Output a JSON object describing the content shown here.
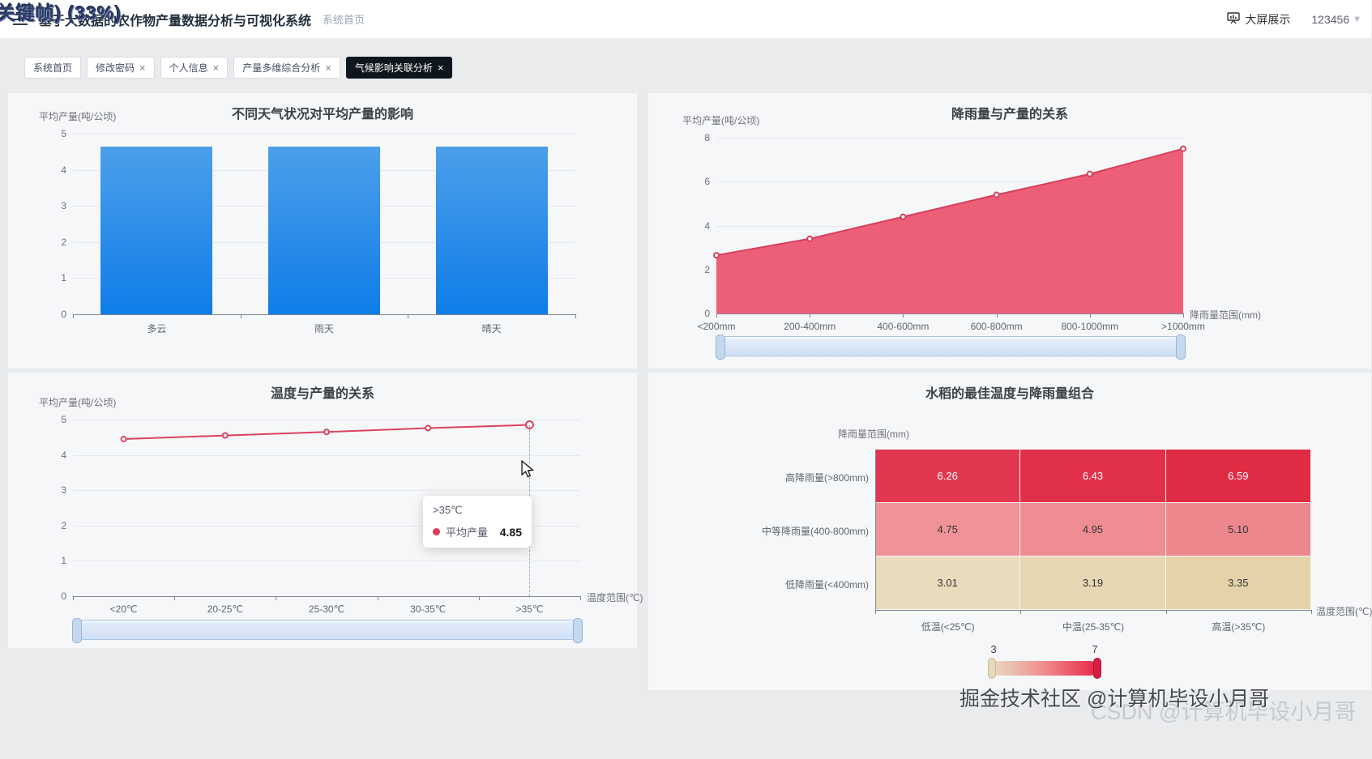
{
  "overlays": {
    "top_left": "关键帧) (33%)",
    "bottom_front": "掘金技术社区 @计算机毕设小月哥",
    "bottom_back": "CSDN @计算机毕设小月哥"
  },
  "header": {
    "title": "基于大数据的农作物产量数据分析与可视化系统",
    "breadcrumb": "系统首页",
    "screen_button": "大屏展示",
    "username": "123456"
  },
  "tabs": [
    {
      "label": "系统首页",
      "closable": false,
      "active": false
    },
    {
      "label": "修改密码",
      "closable": true,
      "active": false
    },
    {
      "label": "个人信息",
      "closable": true,
      "active": false
    },
    {
      "label": "产量多维综合分析",
      "closable": true,
      "active": false
    },
    {
      "label": "气候影响关联分析",
      "closable": true,
      "active": true
    }
  ],
  "chart_data": [
    {
      "type": "bar",
      "title": "不同天气状况对平均产量的影响",
      "ylabel": "平均产量(吨/公顷)",
      "xlabel": "",
      "categories": [
        "多云",
        "雨天",
        "晴天"
      ],
      "values": [
        4.65,
        4.65,
        4.65
      ],
      "ylim": [
        0,
        5
      ],
      "yticks": [
        0,
        1,
        2,
        3,
        4,
        5
      ],
      "grid": true,
      "bar_gradient": [
        "#4c9fea",
        "#0f7de8"
      ]
    },
    {
      "type": "area",
      "title": "降雨量与产量的关系",
      "ylabel": "平均产量(吨/公顷)",
      "xlabel": "降雨量范围(mm)",
      "categories": [
        "<200mm",
        "200-400mm",
        "400-600mm",
        "600-800mm",
        "800-1000mm",
        ">1000mm"
      ],
      "values": [
        2.65,
        3.4,
        4.4,
        5.4,
        6.35,
        7.5
      ],
      "ylim": [
        0,
        8
      ],
      "yticks": [
        0,
        2,
        4,
        6,
        8
      ],
      "grid": true,
      "line_color": "#d6405e",
      "area_color": "#ec5672",
      "has_datazoom": true
    },
    {
      "type": "line",
      "title": "温度与产量的关系",
      "ylabel": "平均产量(吨/公顷)",
      "xlabel": "温度范围(℃)",
      "categories": [
        "<20℃",
        "20-25℃",
        "25-30℃",
        "30-35℃",
        ">35℃"
      ],
      "values": [
        4.45,
        4.55,
        4.65,
        4.76,
        4.85
      ],
      "ylim": [
        0,
        5
      ],
      "yticks": [
        0,
        1,
        2,
        3,
        4,
        5
      ],
      "grid": true,
      "line_color": "#d9435f",
      "has_datazoom": true,
      "tooltip": {
        "category": ">35℃",
        "series": "平均产量",
        "value": "4.85",
        "dot_color": "#e23b57"
      }
    },
    {
      "type": "heatmap",
      "title": "水稻的最佳温度与降雨量组合",
      "ylabel": "降雨量范围(mm)",
      "xlabel": "温度范围(℃)",
      "rows": [
        "高降雨量(>800mm)",
        "中等降雨量(400-800mm)",
        "低降雨量(<400mm)"
      ],
      "columns": [
        "低温(<25℃)",
        "中温(25-35℃)",
        "高温(>35℃)"
      ],
      "values": [
        [
          6.26,
          6.43,
          6.59
        ],
        [
          4.75,
          4.95,
          5.1
        ],
        [
          3.01,
          3.19,
          3.35
        ]
      ],
      "labels": [
        [
          "6.26",
          "6.43",
          "6.59"
        ],
        [
          "4.75",
          "4.95",
          "5.10"
        ],
        [
          "3.01",
          "3.19",
          "3.35"
        ]
      ],
      "cell_colors": [
        [
          "#e23750",
          "#e13049",
          "#e02b44"
        ],
        [
          "#ef9399",
          "#ee8d93",
          "#ec878d"
        ],
        [
          "#e9dcbd",
          "#e7d7b3",
          "#e5d2a9"
        ]
      ],
      "text_colors": [
        [
          "#ffffff",
          "#ffffff",
          "#ffffff"
        ],
        [
          "#333333",
          "#333333",
          "#333333"
        ],
        [
          "#333333",
          "#333333",
          "#333333"
        ]
      ],
      "visual_map": {
        "min": "3",
        "max": "7",
        "gradient": [
          "#e8dcc4",
          "#ee8c8c",
          "#e82648"
        ]
      }
    }
  ]
}
